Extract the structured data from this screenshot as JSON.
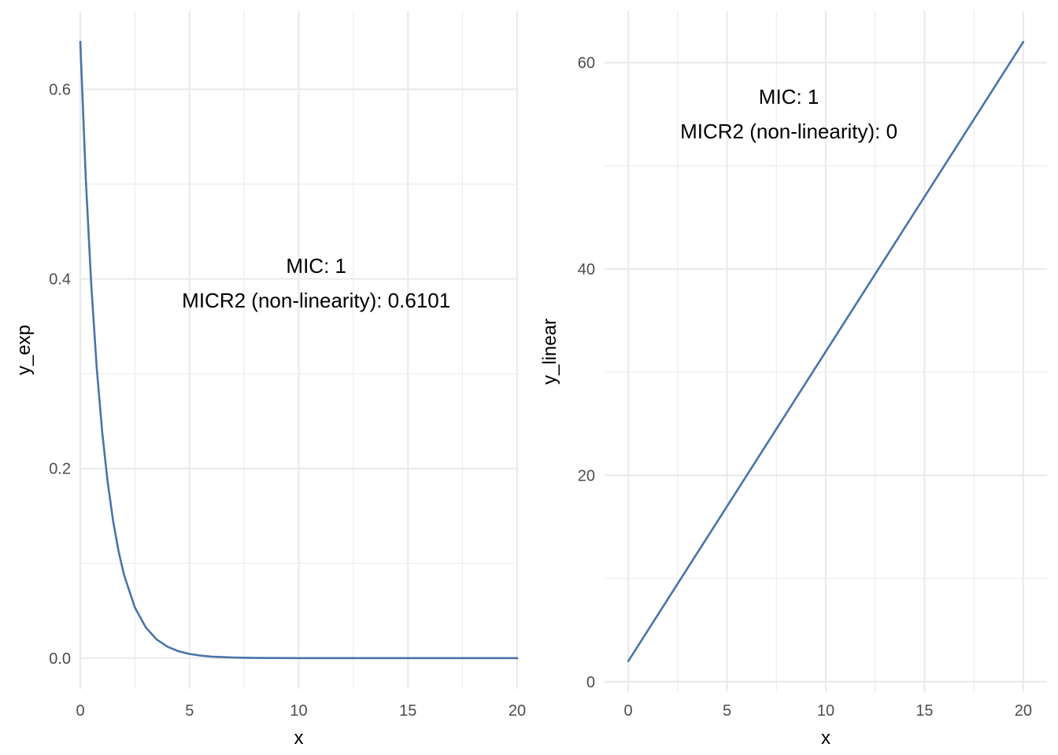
{
  "chart_data": [
    {
      "type": "line",
      "title": "",
      "xlabel": "x",
      "ylabel": "y_exp",
      "xlim": [
        0,
        20
      ],
      "ylim": [
        -0.0325,
        0.6825
      ],
      "x_ticks": [
        0,
        5,
        10,
        15,
        20
      ],
      "x_tick_labels": [
        "0",
        "5",
        "10",
        "15",
        "20"
      ],
      "x_minor_ticks": [
        2.5,
        7.5,
        12.5,
        17.5
      ],
      "y_ticks": [
        0.0,
        0.2,
        0.4,
        0.6
      ],
      "y_tick_labels": [
        "0.0",
        "0.2",
        "0.4",
        "0.6"
      ],
      "y_minor_ticks": [
        0.1,
        0.3,
        0.5
      ],
      "grid": true,
      "legend": "none",
      "line_color": "#4a74a8",
      "series": [
        {
          "x": [
            0,
            0.25,
            0.5,
            0.75,
            1,
            1.25,
            1.5,
            1.75,
            2,
            2.5,
            3,
            3.5,
            4,
            4.5,
            5,
            5.5,
            6,
            7,
            8,
            9,
            10,
            11,
            12,
            14,
            16,
            18,
            20
          ],
          "values": [
            0.65,
            0.5062,
            0.3942,
            0.307,
            0.2391,
            0.1862,
            0.145,
            0.1129,
            0.0879,
            0.0533,
            0.0323,
            0.0196,
            0.0119,
            0.0072,
            0.0044,
            0.0027,
            0.0016,
            0.0006,
            0.0002,
            0.0001,
            0.0,
            0.0,
            0.0,
            0.0,
            0.0,
            0.0,
            0.0
          ]
        }
      ],
      "annotation": {
        "x": 10.8,
        "y": 0.3955,
        "lines": [
          "MIC: 1",
          "MICR2 (non-linearity): 0.6101"
        ]
      }
    },
    {
      "type": "line",
      "title": "",
      "xlabel": "x",
      "ylabel": "y_linear",
      "xlim": [
        -1.2,
        21.2
      ],
      "ylim": [
        -1.0,
        65.0
      ],
      "x_ticks": [
        0,
        5,
        10,
        15,
        20
      ],
      "x_tick_labels": [
        "0",
        "5",
        "10",
        "15",
        "20"
      ],
      "x_minor_ticks": [
        2.5,
        7.5,
        12.5,
        17.5
      ],
      "y_ticks": [
        0,
        20,
        40,
        60
      ],
      "y_tick_labels": [
        "0",
        "20",
        "40",
        "60"
      ],
      "y_minor_ticks": [
        10,
        30,
        50
      ],
      "grid": true,
      "legend": "none",
      "line_color": "#4a74a8",
      "series": [
        {
          "x": [
            0,
            20
          ],
          "values": [
            2,
            62
          ]
        }
      ],
      "annotation": {
        "x": 8.13,
        "y": 55.0,
        "lines": [
          "MIC: 1",
          "MICR2 (non-linearity): 0"
        ]
      }
    }
  ]
}
